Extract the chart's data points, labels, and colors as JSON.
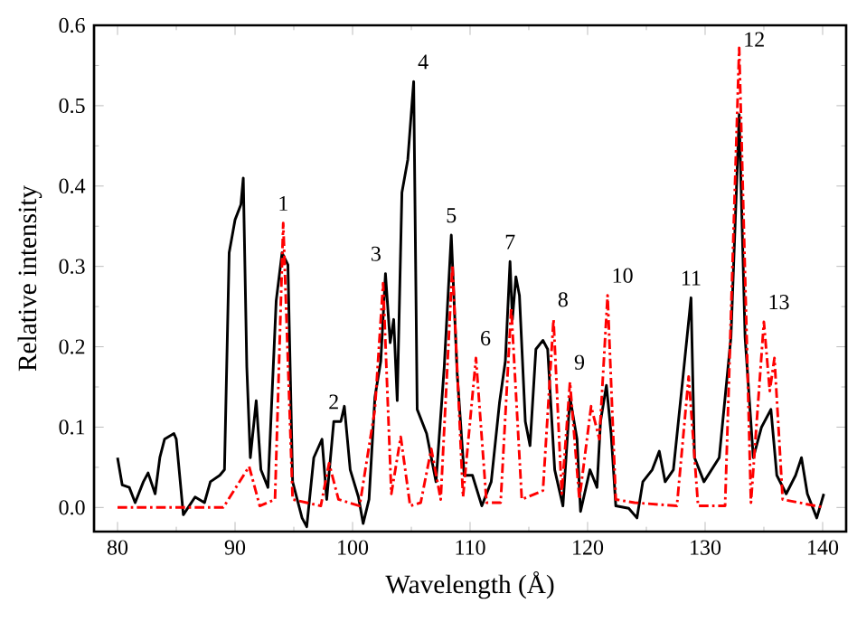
{
  "chart_data": {
    "type": "line",
    "xlabel": "Wavelength (Å)",
    "ylabel": "Relative intensity",
    "xlim": [
      78,
      142
    ],
    "ylim": [
      -0.03,
      0.6
    ],
    "xticks": [
      80,
      90,
      100,
      110,
      120,
      130,
      140
    ],
    "yticks": [
      {
        "value": 0,
        "label": "0.0"
      },
      0.1,
      0.2,
      0.3,
      0.4,
      0.5,
      0.6
    ],
    "series": [
      {
        "color": "#000000",
        "line_style": "solid",
        "x": [
          80,
          80.4,
          81,
          81.5,
          82.2,
          82.6,
          83.2,
          83.6,
          84.0,
          84.8,
          85.0,
          85.6,
          86.6,
          87.4,
          87.9,
          88.7,
          89.1,
          89.5,
          90.0,
          90.5,
          90.7,
          91.0,
          91.3,
          91.8,
          92.2,
          92.8,
          93.5,
          94.0,
          94.5,
          94.9,
          95.7,
          96.1,
          96.7,
          97.4,
          97.8,
          98.4,
          99.0,
          99.3,
          99.8,
          100.5,
          100.9,
          101.4,
          101.9,
          102.4,
          102.8,
          103.2,
          103.5,
          103.8,
          104.2,
          104.7,
          105.2,
          105.5,
          106.3,
          107.1,
          107.8,
          108.4,
          108.9,
          109.5,
          110.2,
          111.0,
          111.8,
          112.5,
          113.0,
          113.4,
          113.6,
          113.9,
          114.2,
          114.7,
          115.1,
          115.6,
          116.2,
          116.6,
          117.2,
          117.9,
          118.5,
          119.1,
          119.4,
          120.2,
          120.8,
          121.1,
          121.6,
          122.0,
          122.4,
          123.5,
          124.2,
          124.7,
          125.5,
          126.1,
          126.6,
          127.3,
          128.1,
          128.8,
          129.1,
          129.9,
          131.2,
          132.2,
          132.9,
          133.4,
          134.1,
          134.8,
          135.6,
          136.1,
          136.9,
          137.7,
          138.2,
          138.7,
          139.5,
          140.1
        ],
        "values": [
          0.062,
          0.028,
          0.025,
          0.006,
          0.032,
          0.043,
          0.017,
          0.062,
          0.085,
          0.092,
          0.085,
          -0.009,
          0.013,
          0.006,
          0.032,
          0.04,
          0.047,
          0.317,
          0.358,
          0.377,
          0.41,
          0.175,
          0.062,
          0.133,
          0.047,
          0.025,
          0.257,
          0.317,
          0.302,
          0.032,
          -0.013,
          -0.024,
          0.062,
          0.085,
          0.01,
          0.107,
          0.107,
          0.126,
          0.047,
          0.013,
          -0.02,
          0.01,
          0.137,
          0.182,
          0.291,
          0.205,
          0.234,
          0.133,
          0.392,
          0.433,
          0.53,
          0.122,
          0.092,
          0.032,
          0.175,
          0.339,
          0.167,
          0.04,
          0.04,
          0.002,
          0.032,
          0.13,
          0.182,
          0.306,
          0.234,
          0.287,
          0.264,
          0.107,
          0.077,
          0.197,
          0.208,
          0.197,
          0.047,
          0.002,
          0.137,
          0.085,
          -0.005,
          0.047,
          0.025,
          0.107,
          0.152,
          0.092,
          0.002,
          -0.001,
          -0.013,
          0.032,
          0.047,
          0.07,
          0.032,
          0.047,
          0.16,
          0.261,
          0.062,
          0.032,
          0.062,
          0.212,
          0.489,
          0.212,
          0.062,
          0.1,
          0.122,
          0.04,
          0.017,
          0.04,
          0.062,
          0.017,
          -0.013,
          0.017
        ]
      },
      {
        "color": "#ff0000",
        "line_style": "dashed",
        "x": [
          80,
          89,
          91.2,
          92.1,
          93.4,
          94.1,
          94.9,
          97.3,
          98.0,
          98.8,
          100.6,
          101.9,
          102.6,
          103.3,
          104.1,
          104.9,
          105.8,
          106.7,
          107.5,
          108.5,
          109.4,
          110.5,
          111.4,
          112.6,
          113.5,
          114.4,
          116.2,
          117.1,
          117.8,
          118.5,
          119.3,
          120.3,
          121.0,
          121.7,
          122.4,
          124.0,
          127.6,
          128.6,
          129.4,
          131.7,
          132.9,
          133.9,
          135.0,
          135.5,
          135.9,
          136.6,
          140.1
        ],
        "values": [
          0.0,
          0.0,
          0.051,
          0.002,
          0.01,
          0.354,
          0.01,
          0.002,
          0.055,
          0.01,
          0.002,
          0.122,
          0.279,
          0.017,
          0.088,
          0.002,
          0.006,
          0.073,
          0.01,
          0.302,
          0.013,
          0.186,
          0.006,
          0.006,
          0.249,
          0.01,
          0.021,
          0.234,
          0.017,
          0.156,
          0.01,
          0.126,
          0.085,
          0.264,
          0.01,
          0.006,
          0.002,
          0.163,
          0.002,
          0.002,
          0.572,
          0.006,
          0.231,
          0.145,
          0.186,
          0.01,
          0.0
        ]
      }
    ],
    "annotations": [
      {
        "text": "1",
        "x": 94.1,
        "y": 0.354
      },
      {
        "text": "2",
        "x": 98.4,
        "y": 0.107
      },
      {
        "text": "3",
        "x": 102.8,
        "y": 0.291
      },
      {
        "text": "4",
        "x": 105.2,
        "y": 0.53
      },
      {
        "text": "5",
        "x": 108.4,
        "y": 0.339
      },
      {
        "text": "6",
        "x": 110.5,
        "y": 0.186
      },
      {
        "text": "7",
        "x": 113.4,
        "y": 0.306
      },
      {
        "text": "8",
        "x": 117.1,
        "y": 0.234
      },
      {
        "text": "9",
        "x": 118.5,
        "y": 0.156
      },
      {
        "text": "10",
        "x": 121.7,
        "y": 0.264
      },
      {
        "text": "11",
        "x": 128.8,
        "y": 0.261
      },
      {
        "text": "12",
        "x": 132.9,
        "y": 0.572
      },
      {
        "text": "13",
        "x": 135.0,
        "y": 0.231
      }
    ]
  }
}
